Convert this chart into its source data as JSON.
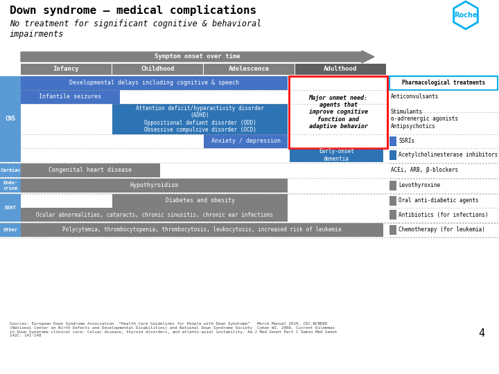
{
  "title": "Down syndrome – medical complications",
  "subtitle": "No treatment for significant cognitive & behavioral\nimpairments",
  "bg_color": "#ffffff",
  "page_num": "4",
  "arrow_label": "Symptom onset over time",
  "age_labels": [
    "Infancy",
    "Childhood",
    "Adolescence",
    "Adulthood"
  ],
  "row_label_color": "#5b9bd5",
  "unmet_need_text": "Major unmet need:\nagents that\nimprove cognitive\nfunction and\nadaptive behavior",
  "unmet_border_color": "#ff0000",
  "pharma_header": "Pharmacological treatments",
  "pharma_header_border": "#00b0f0",
  "pharma_entries": [
    {
      "text": "Anticonvulsants",
      "swatch": null
    },
    {
      "text": "Stimulants\nα-adrenergic agonists\nAntipsychotics",
      "swatch": null
    },
    {
      "text": "SSRIs",
      "swatch": "#4472c4"
    },
    {
      "text": "Acetylcholinesterase inhibitors",
      "swatch": "#2e74b5"
    },
    {
      "text": "ACEi, ARB, β-blockers",
      "swatch": null
    },
    {
      "text": "Levothyroxine",
      "swatch": "#7f7f7f"
    },
    {
      "text": "Oral anti-diabetic agents",
      "swatch": "#7f7f7f"
    },
    {
      "text": "Antibiotics (for infections)",
      "swatch": "#7f7f7f"
    },
    {
      "text": "Chemotherapy (for leukemia)",
      "swatch": "#7f7f7f"
    }
  ],
  "sources_text": "Sources: European Down Syndrome Association  “Health Care Guidelines for People with Down Syndrome”   Merck Manual 2010, CDC-NCBDDD\n(National Center on Birth Defects and Developmental Disabilities) and National Down Syndrome Society  Cohen WI. 2006. Current Dilemmas\nin Down Syndrome clinical care: Celiac disease, thyroid disorders, and atlanto-axial instability. Am J Med Genet Part C Semin Med Genet\n142C: 141-148",
  "roche_logo_color": "#00b0f0",
  "blue_dark": "#2e74b5",
  "blue_mid": "#4472c4",
  "blue_light": "#5b9bd5",
  "gray": "#7f7f7f",
  "gray_dark": "#606060",
  "arrow_gray": "#808080"
}
